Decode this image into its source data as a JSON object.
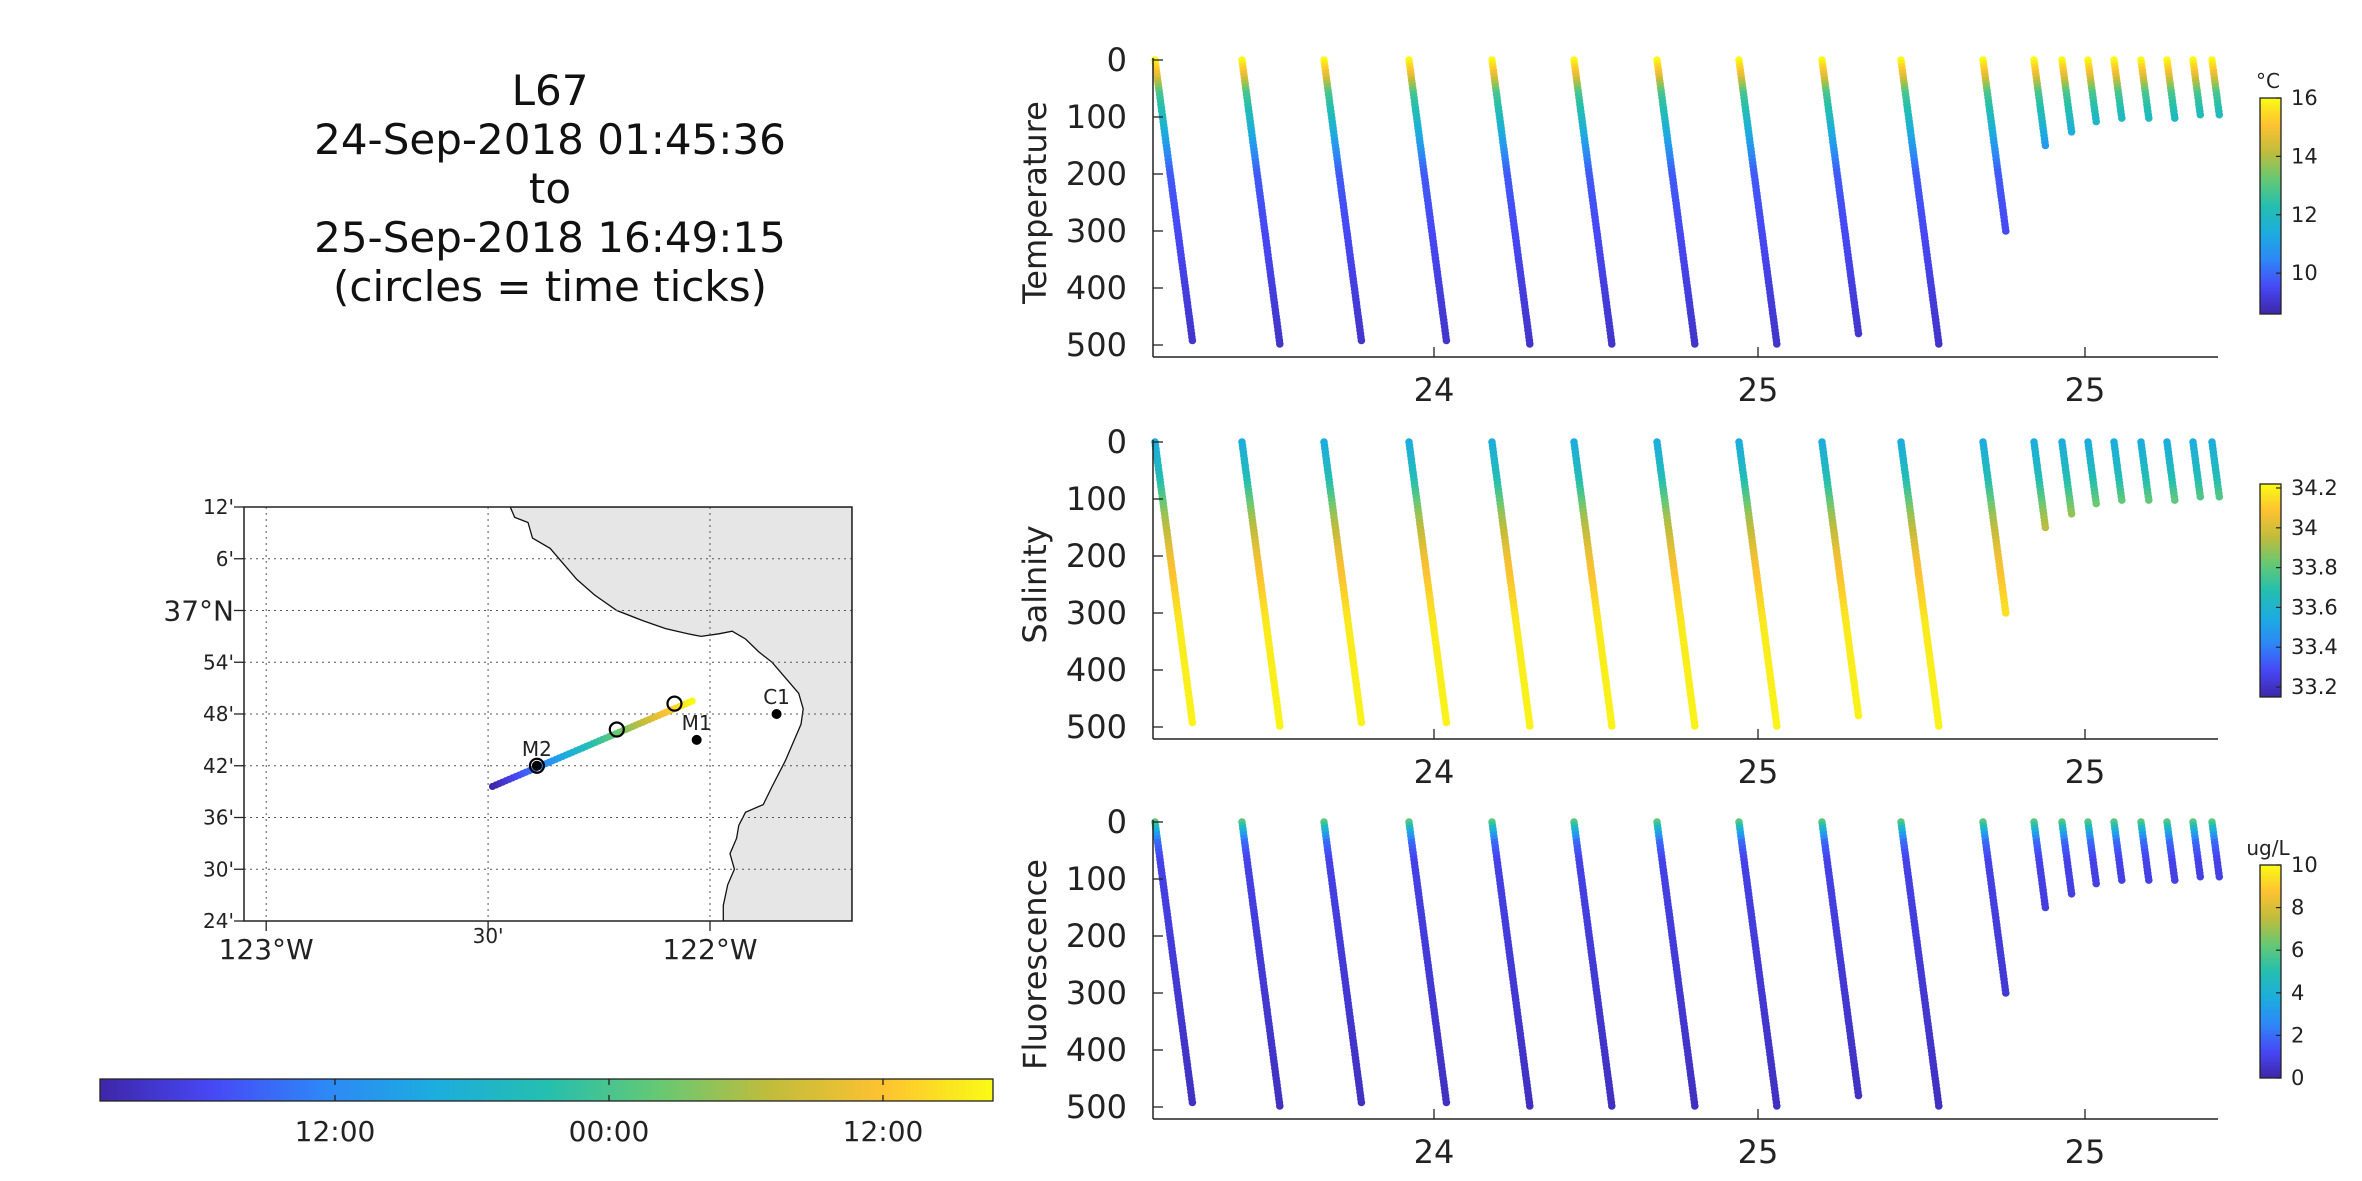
{
  "header": {
    "lines": [
      "L67",
      "24-Sep-2018 01:45:36",
      "to",
      "25-Sep-2018 16:49:15",
      "(circles = time ticks)"
    ]
  },
  "colormap": [
    "#3e26a8",
    "#4748f5",
    "#2e87f7",
    "#1cadde",
    "#24bfaf",
    "#66c874",
    "#c0bc3c",
    "#fdc231",
    "#f9fb15"
  ],
  "chart_data": [
    {
      "type": "map",
      "lat_ticks": [
        "12'",
        "6'",
        "37°N",
        "54'",
        "48'",
        "42'",
        "36'",
        "30'",
        "24'"
      ],
      "lon_ticks": [
        "123°W",
        "30'",
        "122°W"
      ],
      "lat_range": [
        36.4,
        37.2
      ],
      "lon_range": [
        -123.05,
        -121.68
      ],
      "stations": [
        {
          "name": "M2",
          "lon": -122.39,
          "lat": 36.7
        },
        {
          "name": "M1",
          "lon": -122.03,
          "lat": 36.75
        },
        {
          "name": "C1",
          "lon": -121.85,
          "lat": 36.8
        }
      ],
      "track": {
        "start": [
          -122.49,
          36.66
        ],
        "end": [
          -122.04,
          36.825
        ]
      },
      "time_circles": [
        [
          -122.39,
          36.7
        ],
        [
          -122.21,
          36.77
        ],
        [
          -122.08,
          36.82
        ]
      ],
      "land_color": "#e6e6e6"
    },
    {
      "type": "colorbar",
      "orientation": "horizontal",
      "ticks": [
        "12:00",
        "00:00",
        "12:00"
      ]
    },
    {
      "type": "scatter",
      "ylabel": "Temperature",
      "x_ticks": [
        "24",
        "25",
        "25"
      ],
      "y_ticks": [
        "0",
        "100",
        "200",
        "300",
        "400",
        "500"
      ],
      "ylim": [
        0,
        500
      ],
      "colorbar": {
        "unit": "°C",
        "ticks": [
          "16",
          "14",
          "12",
          "10"
        ],
        "range": [
          8.6,
          16.0
        ]
      },
      "profile_color_values": [
        [
          0,
          16.0
        ],
        [
          30,
          14.6
        ],
        [
          60,
          12.8
        ],
        [
          120,
          11.6
        ],
        [
          200,
          9.8
        ],
        [
          500,
          9.0
        ]
      ],
      "profiles": [
        {
          "max_depth": 495
        },
        {
          "max_depth": 500
        },
        {
          "max_depth": 497
        },
        {
          "max_depth": 497
        },
        {
          "max_depth": 498
        },
        {
          "max_depth": 500
        },
        {
          "max_depth": 500
        },
        {
          "max_depth": 498
        },
        {
          "max_depth": 485
        },
        {
          "max_depth": 500
        },
        {
          "max_depth": 300
        },
        {
          "max_depth": 155
        },
        {
          "max_depth": 130
        },
        {
          "max_depth": 113
        },
        {
          "max_depth": 107
        },
        {
          "max_depth": 105
        },
        {
          "max_depth": 103
        },
        {
          "max_depth": 100
        },
        {
          "max_depth": 97
        }
      ]
    },
    {
      "type": "scatter",
      "ylabel": "Salinity",
      "x_ticks": [
        "24",
        "25",
        "25"
      ],
      "y_ticks": [
        "0",
        "100",
        "200",
        "300",
        "400",
        "500"
      ],
      "ylim": [
        0,
        500
      ],
      "colorbar": {
        "unit": "",
        "ticks": [
          "34.2",
          "34",
          "33.8",
          "33.6",
          "33.4",
          "33.2"
        ],
        "range": [
          33.15,
          34.22
        ]
      },
      "profile_color_values": [
        [
          0,
          33.55
        ],
        [
          60,
          33.65
        ],
        [
          130,
          33.9
        ],
        [
          200,
          34.05
        ],
        [
          320,
          34.18
        ],
        [
          500,
          34.2
        ]
      ],
      "profiles": [
        {
          "max_depth": 495
        },
        {
          "max_depth": 500
        },
        {
          "max_depth": 497
        },
        {
          "max_depth": 497
        },
        {
          "max_depth": 498
        },
        {
          "max_depth": 500
        },
        {
          "max_depth": 500
        },
        {
          "max_depth": 498
        },
        {
          "max_depth": 485
        },
        {
          "max_depth": 500
        },
        {
          "max_depth": 300
        },
        {
          "max_depth": 155
        },
        {
          "max_depth": 130
        },
        {
          "max_depth": 113
        },
        {
          "max_depth": 107
        },
        {
          "max_depth": 105
        },
        {
          "max_depth": 103
        },
        {
          "max_depth": 100
        },
        {
          "max_depth": 97
        }
      ]
    },
    {
      "type": "scatter",
      "ylabel": "Fluorescence",
      "x_ticks": [
        "24",
        "25",
        "25"
      ],
      "y_ticks": [
        "0",
        "100",
        "200",
        "300",
        "400",
        "500"
      ],
      "ylim": [
        0,
        500
      ],
      "colorbar": {
        "unit": "ug/L",
        "ticks": [
          "10",
          "8",
          "6",
          "4",
          "2",
          "0"
        ],
        "range": [
          0,
          10
        ]
      },
      "profile_color_values": [
        [
          0,
          6.0
        ],
        [
          15,
          4.0
        ],
        [
          35,
          2.0
        ],
        [
          70,
          1.0
        ],
        [
          500,
          0.4
        ]
      ],
      "profiles": [
        {
          "max_depth": 495
        },
        {
          "max_depth": 500
        },
        {
          "max_depth": 497
        },
        {
          "max_depth": 497
        },
        {
          "max_depth": 498
        },
        {
          "max_depth": 500
        },
        {
          "max_depth": 500
        },
        {
          "max_depth": 498
        },
        {
          "max_depth": 485
        },
        {
          "max_depth": 500
        },
        {
          "max_depth": 300
        },
        {
          "max_depth": 155
        },
        {
          "max_depth": 130
        },
        {
          "max_depth": 113
        },
        {
          "max_depth": 107
        },
        {
          "max_depth": 105
        },
        {
          "max_depth": 103
        },
        {
          "max_depth": 100
        },
        {
          "max_depth": 97
        }
      ]
    }
  ]
}
